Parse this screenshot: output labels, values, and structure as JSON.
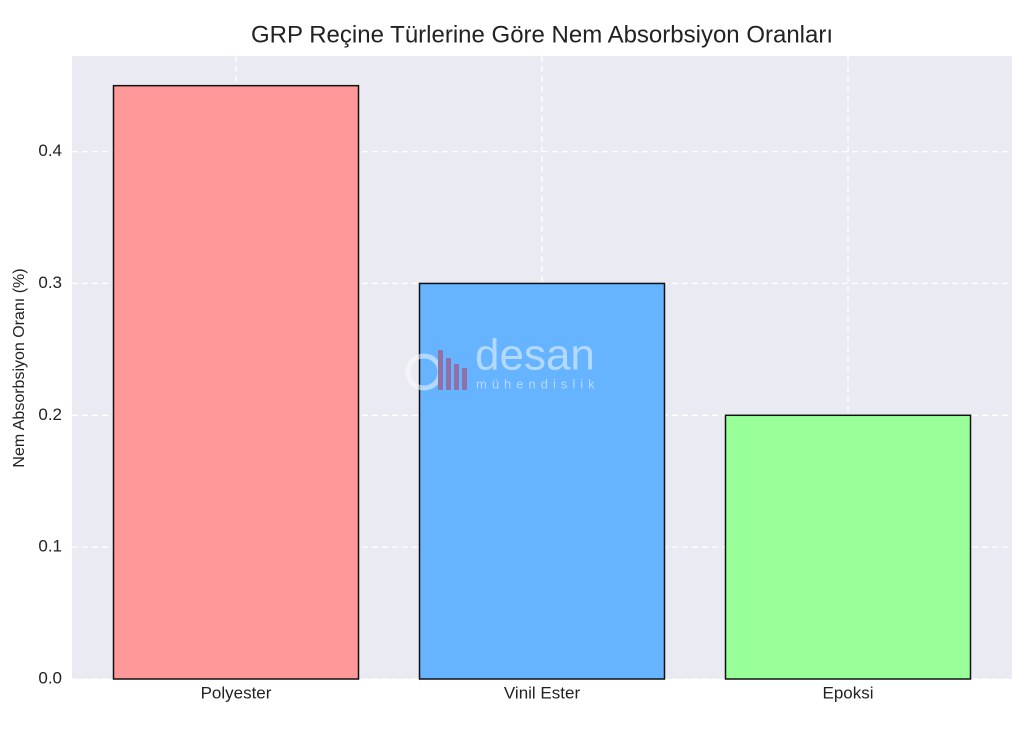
{
  "chart_data": {
    "type": "bar",
    "title": "GRP Reçine Türlerine Göre Nem Absorbsiyon Oranları",
    "y_label": "Nem Absorbsiyon Oranı (%)",
    "categories": [
      "Polyester",
      "Vinil Ester",
      "Epoksi"
    ],
    "values": [
      0.45,
      0.3,
      0.2
    ],
    "colors": [
      "#ff9999",
      "#66b3ff",
      "#99ff99"
    ],
    "ylim": [
      0,
      0.4725
    ],
    "yticks": [
      {
        "value": 0,
        "label": "0.0"
      },
      0.1,
      0.2,
      0.3,
      0.4
    ],
    "grid": true,
    "watermark": {
      "name": "desan",
      "subtitle": "mühendislik"
    }
  }
}
